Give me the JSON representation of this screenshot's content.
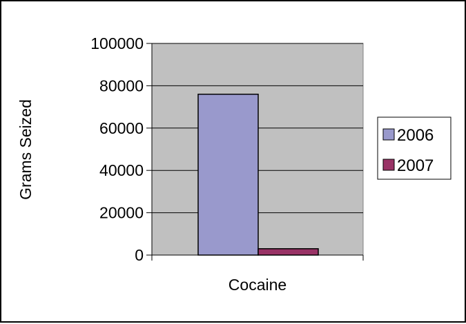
{
  "chart_data": {
    "type": "bar",
    "categories": [
      "Cocaine"
    ],
    "series": [
      {
        "name": "2006",
        "values": [
          76000
        ],
        "color": "#9999cc"
      },
      {
        "name": "2007",
        "values": [
          3000
        ],
        "color": "#993366"
      }
    ],
    "ylabel": "Grams Seized",
    "xlabel": "",
    "ylim": [
      0,
      100000
    ],
    "yticks": [
      "0",
      "20000",
      "40000",
      "60000",
      "80000",
      "100000"
    ],
    "grid": true,
    "legend_position": "right",
    "plot_background": "#c0c0c0"
  }
}
